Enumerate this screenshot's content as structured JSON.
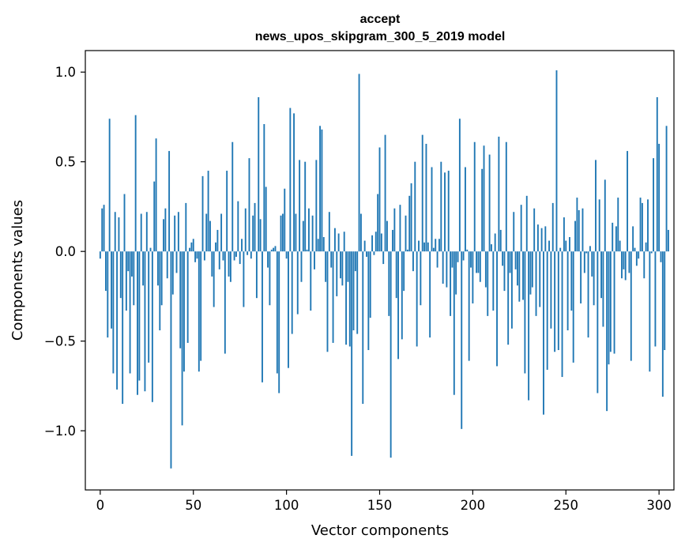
{
  "chart_data": {
    "type": "bar",
    "title": "accept",
    "subtitle": "news_upos_skipgram_300_5_2019 model",
    "xlabel": "Vector components",
    "ylabel": "Components values",
    "xlim": [
      -8,
      308
    ],
    "ylim": [
      -1.33,
      1.12
    ],
    "xticks": [
      0,
      50,
      100,
      150,
      200,
      250,
      300
    ],
    "xtick_labels": [
      "0",
      "50",
      "100",
      "150",
      "200",
      "250",
      "300"
    ],
    "yticks": [
      -1.0,
      -0.5,
      0.0,
      0.5,
      1.0
    ],
    "ytick_labels": [
      "−1.0",
      "−0.5",
      "0.0",
      "0.5",
      "1.0"
    ],
    "bar_color": "#1f77b4",
    "values": [
      -0.04,
      0.24,
      0.26,
      -0.22,
      -0.48,
      0.74,
      -0.43,
      -0.68,
      0.22,
      -0.77,
      0.19,
      -0.26,
      -0.85,
      0.32,
      -0.33,
      -0.11,
      -0.68,
      -0.14,
      -0.3,
      0.76,
      -0.8,
      -0.72,
      0.21,
      -0.19,
      -0.78,
      0.22,
      -0.62,
      0.02,
      -0.84,
      0.39,
      0.63,
      -0.19,
      -0.44,
      -0.3,
      0.18,
      0.24,
      -0.15,
      0.56,
      -1.21,
      -0.24,
      0.2,
      -0.12,
      0.22,
      -0.54,
      -0.97,
      -0.67,
      0.27,
      -0.51,
      0.02,
      0.05,
      0.07,
      -0.06,
      -0.04,
      -0.67,
      -0.61,
      0.42,
      -0.05,
      0.21,
      0.45,
      0.17,
      -0.14,
      -0.31,
      0.05,
      0.12,
      -0.1,
      0.21,
      -0.05,
      -0.57,
      0.45,
      -0.14,
      -0.17,
      0.61,
      -0.05,
      -0.03,
      0.28,
      -0.07,
      0.07,
      -0.31,
      0.24,
      -0.02,
      0.52,
      -0.04,
      0.2,
      0.27,
      -0.26,
      0.86,
      0.18,
      -0.73,
      0.71,
      0.36,
      -0.09,
      -0.3,
      0.01,
      0.02,
      0.03,
      -0.68,
      -0.79,
      0.2,
      0.21,
      0.35,
      -0.04,
      -0.65,
      0.8,
      -0.46,
      0.77,
      0.21,
      -0.35,
      0.51,
      -0.17,
      0.17,
      0.5,
      0.01,
      0.24,
      -0.33,
      0.2,
      -0.1,
      0.51,
      0.07,
      0.7,
      0.68,
      0.08,
      -0.17,
      -0.56,
      0.22,
      -0.09,
      -0.51,
      0.13,
      -0.25,
      0.1,
      -0.15,
      -0.19,
      0.11,
      -0.52,
      -0.17,
      -0.53,
      -1.14,
      -0.44,
      -0.11,
      -0.46,
      0.99,
      0.21,
      -0.85,
      0.06,
      -0.03,
      -0.55,
      -0.37,
      0.09,
      -0.02,
      0.11,
      0.32,
      0.58,
      0.1,
      -0.07,
      0.65,
      0.17,
      -0.36,
      -1.15,
      0.12,
      0.24,
      -0.26,
      -0.6,
      0.26,
      -0.49,
      -0.22,
      0.2,
      0.01,
      0.31,
      0.38,
      -0.11,
      0.5,
      -0.53,
      0.06,
      -0.3,
      0.65,
      0.05,
      0.6,
      0.05,
      -0.48,
      0.47,
      0.02,
      0.07,
      -0.09,
      0.07,
      0.5,
      -0.18,
      0.44,
      -0.2,
      0.45,
      -0.36,
      -0.09,
      -0.8,
      -0.24,
      -0.06,
      0.74,
      -0.99,
      -0.05,
      0.47,
      0.01,
      -0.61,
      -0.09,
      -0.29,
      0.61,
      -0.12,
      -0.12,
      -0.17,
      0.46,
      0.59,
      -0.2,
      -0.36,
      0.54,
      0.04,
      -0.33,
      0.1,
      -0.64,
      0.64,
      0.12,
      -0.08,
      -0.22,
      0.61,
      -0.52,
      -0.12,
      -0.43,
      0.22,
      -0.1,
      -0.19,
      -0.28,
      0.26,
      -0.27,
      -0.68,
      0.31,
      -0.83,
      -0.24,
      -0.2,
      0.24,
      -0.36,
      0.15,
      -0.31,
      0.13,
      -0.91,
      0.14,
      -0.66,
      0.06,
      -0.43,
      0.27,
      -0.56,
      1.01,
      -0.55,
      0.02,
      -0.7,
      0.19,
      0.06,
      -0.44,
      0.08,
      -0.33,
      -0.62,
      0.17,
      0.3,
      0.23,
      -0.29,
      0.24,
      -0.12,
      -0.01,
      -0.48,
      0.03,
      -0.14,
      -0.3,
      0.51,
      -0.79,
      0.29,
      -0.26,
      -0.42,
      0.4,
      -0.89,
      -0.63,
      -0.56,
      0.16,
      -0.57,
      0.14,
      0.3,
      0.06,
      -0.15,
      -0.1,
      -0.16,
      0.56,
      -0.12,
      -0.61,
      0.14,
      0.02,
      -0.08,
      -0.04,
      0.3,
      0.27,
      -0.15,
      0.05,
      0.29,
      -0.67,
      -0.01,
      0.52,
      -0.53,
      0.86,
      0.6,
      -0.06,
      -0.81,
      -0.55,
      0.7,
      0.12
    ]
  }
}
